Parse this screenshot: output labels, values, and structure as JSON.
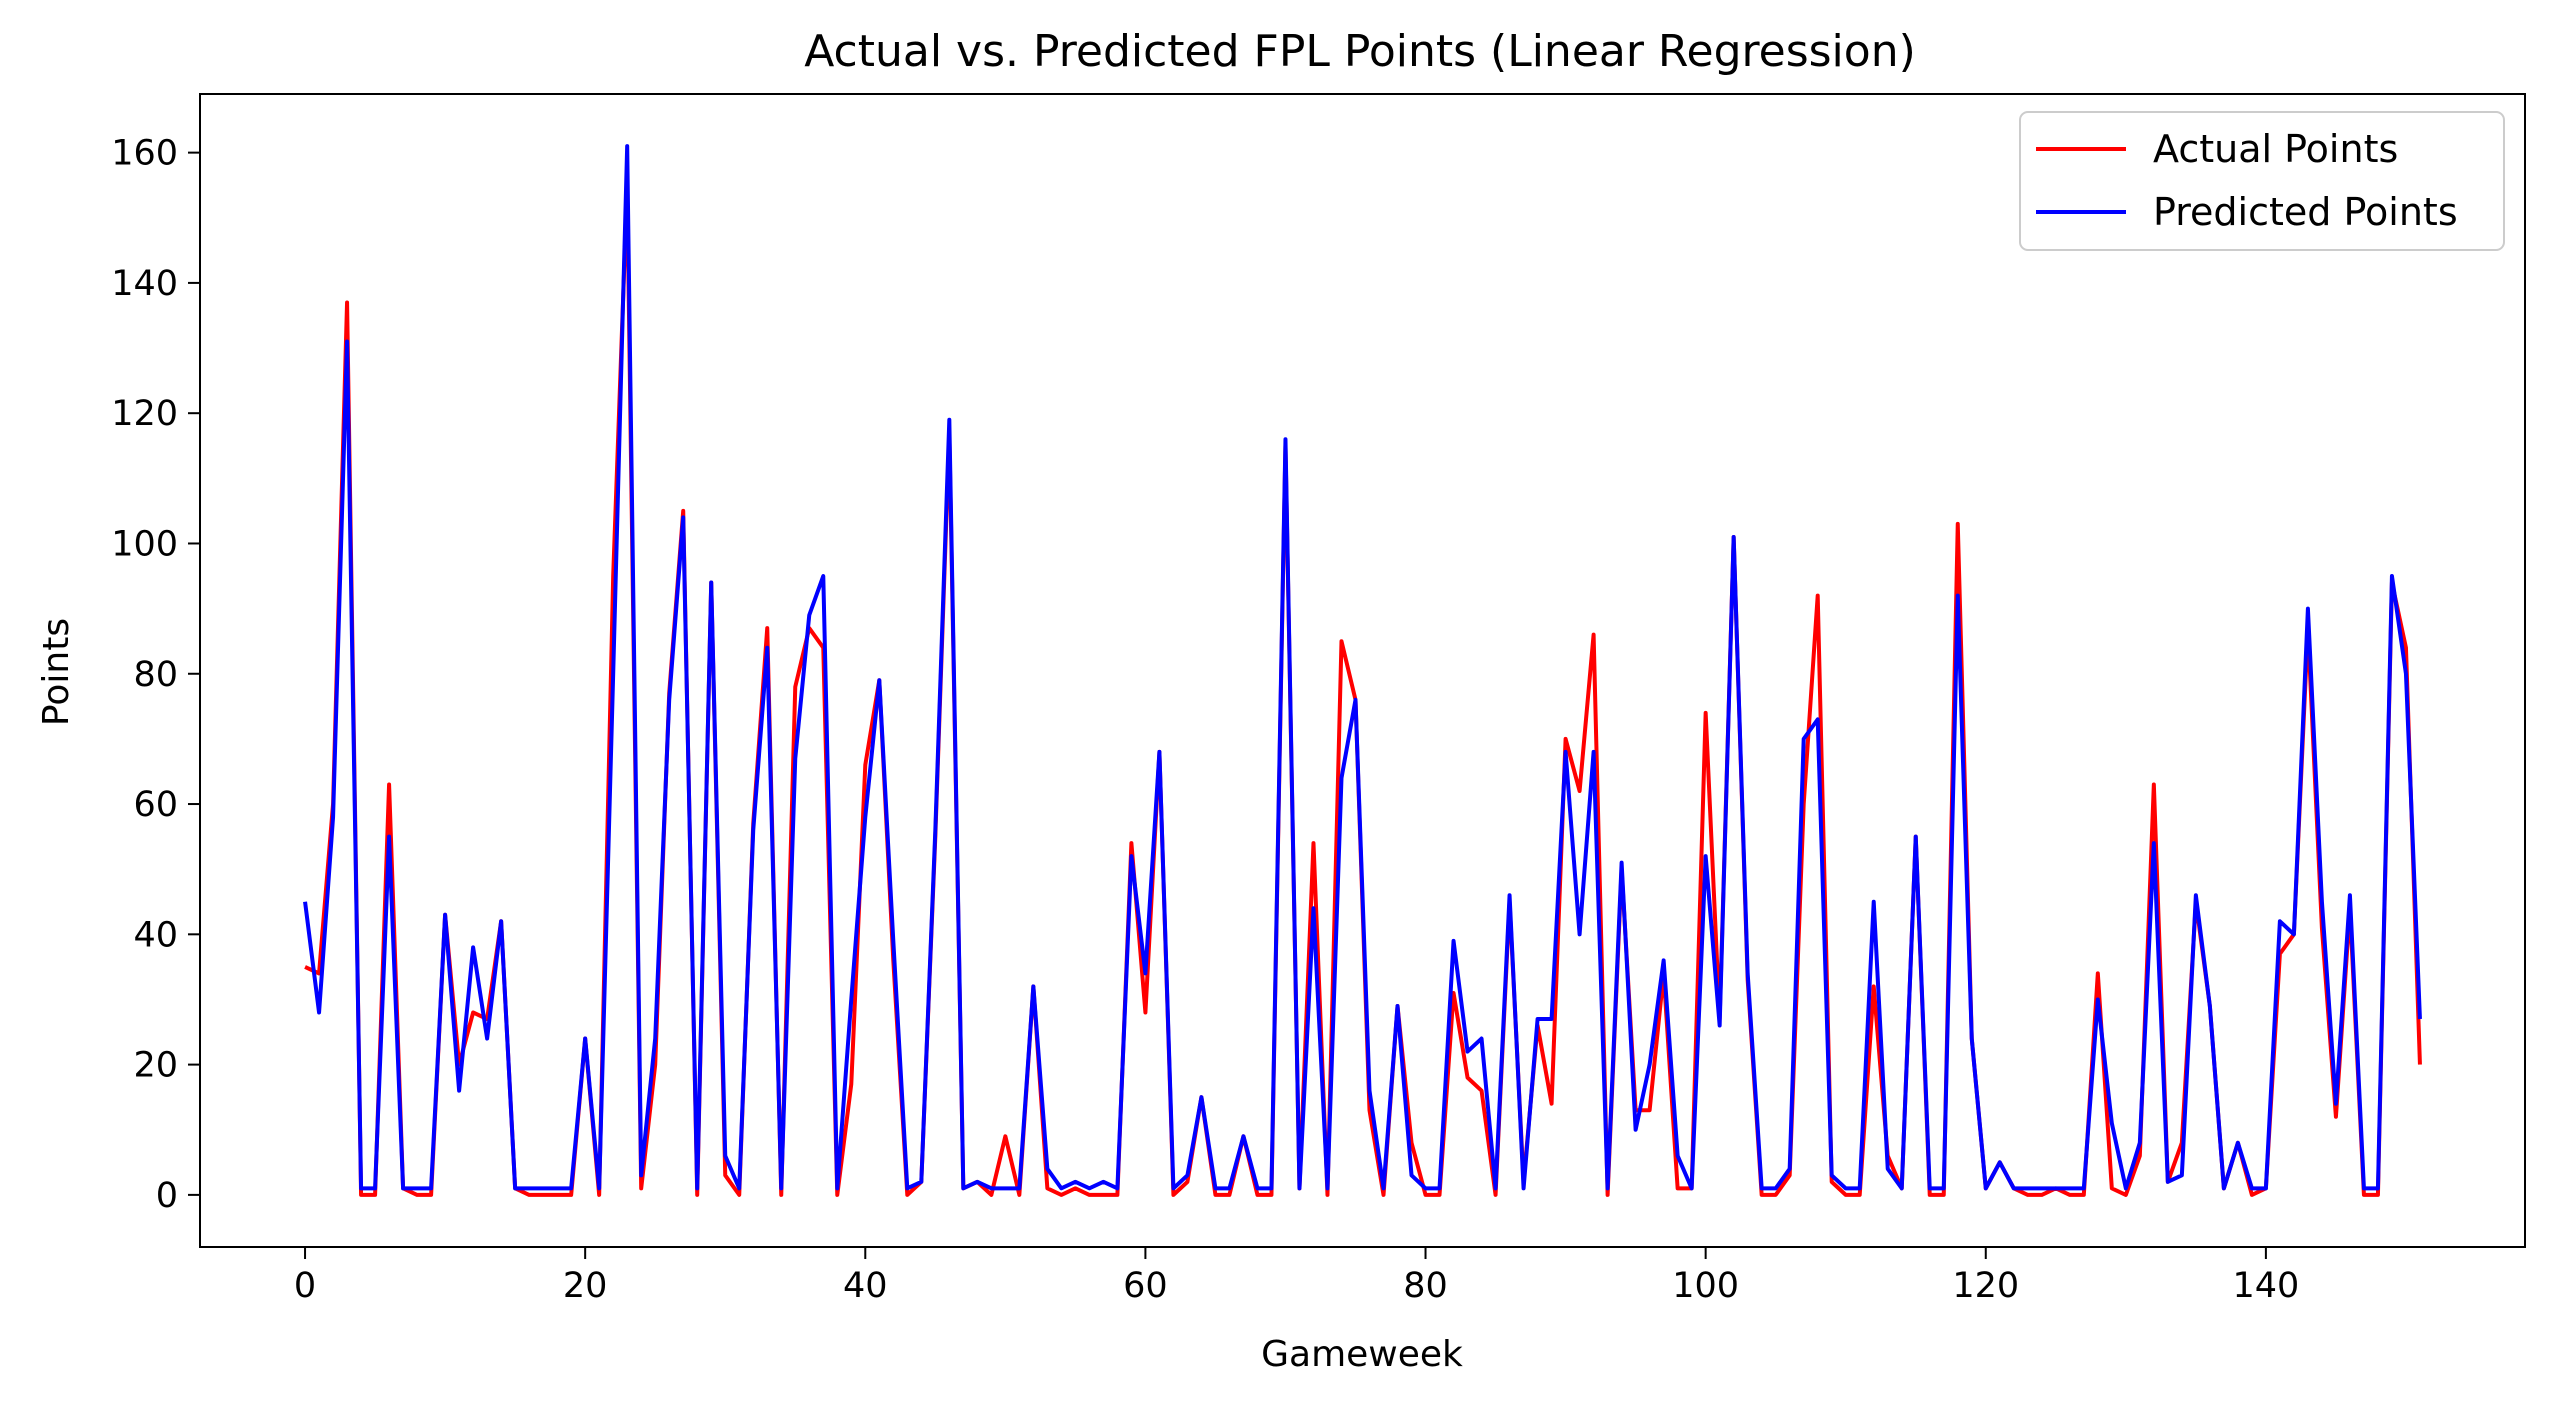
{
  "chart_data": {
    "type": "line",
    "title": "Actual vs. Predicted FPL Points (Linear Regression)",
    "xlabel": "Gameweek",
    "ylabel": "Points",
    "xlim": [
      -7.5,
      158.5
    ],
    "ylim": [
      -8,
      169
    ],
    "xticks": [
      0,
      20,
      40,
      60,
      80,
      100,
      120,
      140
    ],
    "yticks": [
      0,
      20,
      40,
      60,
      80,
      100,
      120,
      140,
      160
    ],
    "grid": false,
    "legend_position": "top-right",
    "series": [
      {
        "name": "Actual Points",
        "color": "#ff0000",
        "x": [
          0,
          1,
          2,
          3,
          4,
          5,
          6,
          7,
          8,
          9,
          10,
          11,
          12,
          13,
          14,
          15,
          16,
          17,
          18,
          19,
          20,
          21,
          22,
          23,
          24,
          25,
          26,
          27,
          28,
          29,
          30,
          31,
          32,
          33,
          34,
          35,
          36,
          37,
          38,
          39,
          40,
          41,
          42,
          43,
          44,
          45,
          46,
          47,
          48,
          49,
          50,
          51,
          52,
          53,
          54,
          55,
          56,
          57,
          58,
          59,
          60,
          61,
          62,
          63,
          64,
          65,
          66,
          67,
          68,
          69,
          70,
          71,
          72,
          73,
          74,
          75,
          76,
          77,
          78,
          79,
          80,
          81,
          82,
          83,
          84,
          85,
          86,
          87,
          88,
          89,
          90,
          91,
          92,
          93,
          94,
          95,
          96,
          97,
          98,
          99,
          100,
          101,
          102,
          103,
          104,
          105,
          106,
          107,
          108,
          109,
          110,
          111,
          112,
          113,
          114,
          115,
          116,
          117,
          118,
          119,
          120,
          121,
          122,
          123,
          124,
          125,
          126,
          127,
          128,
          129,
          130,
          131,
          132,
          133,
          134,
          135,
          136,
          137,
          138,
          139,
          140,
          141,
          142,
          143,
          144,
          145,
          146,
          147,
          148,
          149,
          150,
          151
        ],
        "values": [
          35,
          34,
          60,
          137,
          0,
          0,
          63,
          1,
          0,
          0,
          43,
          20,
          28,
          27,
          42,
          1,
          0,
          0,
          0,
          0,
          24,
          0,
          95,
          155,
          1,
          20,
          77,
          105,
          0,
          94,
          3,
          0,
          57,
          87,
          0,
          78,
          87,
          84,
          0,
          17,
          66,
          79,
          36,
          0,
          2,
          55,
          117,
          1,
          2,
          0,
          9,
          0,
          32,
          1,
          0,
          1,
          0,
          0,
          0,
          54,
          28,
          68,
          0,
          2,
          15,
          0,
          0,
          9,
          0,
          0,
          115,
          1,
          54,
          0,
          85,
          76,
          13,
          0,
          29,
          8,
          0,
          0,
          31,
          18,
          16,
          0,
          45,
          2,
          26,
          14,
          70,
          62,
          86,
          0,
          50,
          13,
          13,
          34,
          1,
          1,
          74,
          27,
          101,
          33,
          0,
          0,
          3,
          60,
          92,
          2,
          0,
          0,
          32,
          6,
          1,
          55,
          0,
          0,
          103,
          24,
          1,
          5,
          1,
          0,
          0,
          1,
          0,
          0,
          34,
          1,
          0,
          6,
          63,
          2,
          8,
          45,
          29,
          1,
          8,
          0,
          1,
          37,
          40,
          87,
          41,
          12,
          44,
          0,
          0,
          94,
          84,
          20
        ]
      },
      {
        "name": "Predicted Points",
        "color": "#0000ff",
        "x": [
          0,
          1,
          2,
          3,
          4,
          5,
          6,
          7,
          8,
          9,
          10,
          11,
          12,
          13,
          14,
          15,
          16,
          17,
          18,
          19,
          20,
          21,
          22,
          23,
          24,
          25,
          26,
          27,
          28,
          29,
          30,
          31,
          32,
          33,
          34,
          35,
          36,
          37,
          38,
          39,
          40,
          41,
          42,
          43,
          44,
          45,
          46,
          47,
          48,
          49,
          50,
          51,
          52,
          53,
          54,
          55,
          56,
          57,
          58,
          59,
          60,
          61,
          62,
          63,
          64,
          65,
          66,
          67,
          68,
          69,
          70,
          71,
          72,
          73,
          74,
          75,
          76,
          77,
          78,
          79,
          80,
          81,
          82,
          83,
          84,
          85,
          86,
          87,
          88,
          89,
          90,
          91,
          92,
          93,
          94,
          95,
          96,
          97,
          98,
          99,
          100,
          101,
          102,
          103,
          104,
          105,
          106,
          107,
          108,
          109,
          110,
          111,
          112,
          113,
          114,
          115,
          116,
          117,
          118,
          119,
          120,
          121,
          122,
          123,
          124,
          125,
          126,
          127,
          128,
          129,
          130,
          131,
          132,
          133,
          134,
          135,
          136,
          137,
          138,
          139,
          140,
          141,
          142,
          143,
          144,
          145,
          146,
          147,
          148,
          149,
          150,
          151
        ],
        "values": [
          45,
          28,
          58,
          131,
          1,
          1,
          55,
          1,
          1,
          1,
          43,
          16,
          38,
          24,
          42,
          1,
          1,
          1,
          1,
          1,
          24,
          1,
          80,
          161,
          3,
          24,
          76,
          104,
          1,
          94,
          6,
          1,
          56,
          84,
          1,
          67,
          89,
          95,
          1,
          30,
          58,
          79,
          39,
          1,
          2,
          56,
          119,
          1,
          2,
          1,
          1,
          1,
          32,
          4,
          1,
          2,
          1,
          2,
          1,
          52,
          34,
          68,
          1,
          3,
          15,
          1,
          1,
          9,
          1,
          1,
          116,
          1,
          44,
          1,
          64,
          76,
          16,
          1,
          29,
          3,
          1,
          1,
          39,
          22,
          24,
          1,
          46,
          1,
          27,
          27,
          68,
          40,
          68,
          1,
          51,
          10,
          20,
          36,
          6,
          1,
          52,
          26,
          101,
          34,
          1,
          1,
          4,
          70,
          73,
          3,
          1,
          1,
          45,
          4,
          1,
          55,
          1,
          1,
          92,
          24,
          1,
          5,
          1,
          1,
          1,
          1,
          1,
          1,
          30,
          11,
          1,
          8,
          54,
          2,
          3,
          46,
          29,
          1,
          8,
          1,
          1,
          42,
          40,
          90,
          45,
          14,
          46,
          1,
          1,
          95,
          80,
          27
        ]
      }
    ]
  }
}
